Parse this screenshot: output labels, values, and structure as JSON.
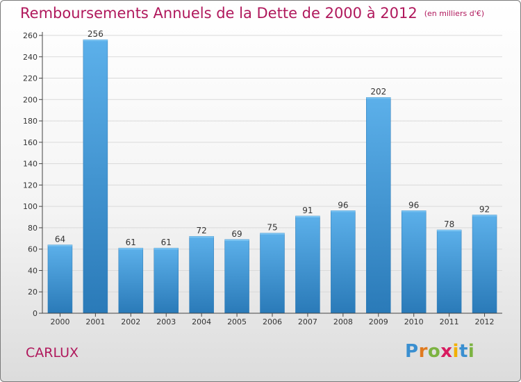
{
  "header": {
    "title": "Remboursements Annuels de la Dette de 2000 à 2012",
    "unit": "(en milliers d'€)"
  },
  "footer": {
    "commune": "CARLUX",
    "logo_letters": [
      "P",
      "r",
      "o",
      "x",
      "i",
      "t",
      "i"
    ],
    "logo_colors": [
      "#3a8fd0",
      "#e07a1f",
      "#7cb342",
      "#d81b60",
      "#f2b000",
      "#3a8fd0",
      "#7cb342"
    ]
  },
  "colors": {
    "bar_light": "#5cb0ea",
    "bar_dark": "#2a7ab8",
    "title": "#b0185c",
    "grid": "#d9d9d9",
    "axis": "#444444"
  },
  "chart_data": {
    "type": "bar",
    "categories": [
      "2000",
      "2001",
      "2002",
      "2003",
      "2004",
      "2005",
      "2006",
      "2007",
      "2008",
      "2009",
      "2010",
      "2011",
      "2012"
    ],
    "values": [
      64,
      256,
      61,
      61,
      72,
      69,
      75,
      91,
      96,
      202,
      96,
      78,
      92
    ],
    "title": "Remboursements Annuels de la Dette de 2000 à 2012",
    "xlabel": "",
    "ylabel": "",
    "ylim": [
      0,
      260
    ],
    "yticks": [
      0,
      20,
      40,
      60,
      80,
      100,
      120,
      140,
      160,
      180,
      200,
      220,
      240,
      260
    ],
    "grid": true,
    "legend": "none"
  }
}
